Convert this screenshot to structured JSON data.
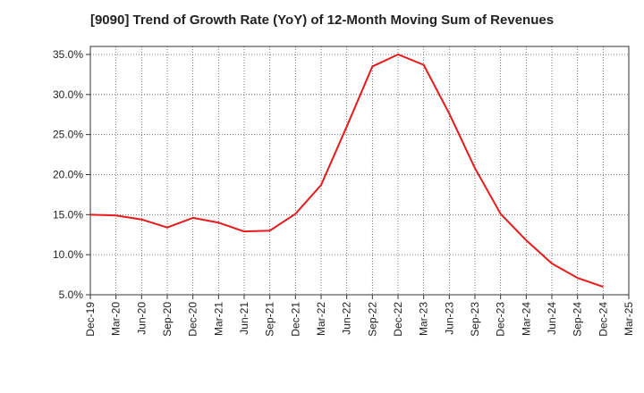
{
  "chart_data": {
    "type": "line",
    "title": "[9090]  Trend of Growth Rate (YoY) of 12-Month Moving Sum of Revenues",
    "xlabel": "",
    "ylabel": "",
    "ylim": [
      5.0,
      36.0
    ],
    "yticks": [
      5.0,
      10.0,
      15.0,
      20.0,
      25.0,
      30.0,
      35.0
    ],
    "ytick_labels": [
      "5.0%",
      "10.0%",
      "15.0%",
      "20.0%",
      "25.0%",
      "30.0%",
      "35.0%"
    ],
    "xticks": [
      "Dec-19",
      "Mar-20",
      "Jun-20",
      "Sep-20",
      "Dec-20",
      "Mar-21",
      "Jun-21",
      "Sep-21",
      "Dec-21",
      "Mar-22",
      "Jun-22",
      "Sep-22",
      "Dec-22",
      "Mar-23",
      "Jun-23",
      "Sep-23",
      "Dec-23",
      "Mar-24",
      "Jun-24",
      "Sep-24",
      "Dec-24",
      "Mar-25"
    ],
    "x": [
      "Dec-19",
      "Mar-20",
      "Jun-20",
      "Sep-20",
      "Dec-20",
      "Mar-21",
      "Jun-21",
      "Sep-21",
      "Dec-21",
      "Mar-22",
      "Jun-22",
      "Sep-22",
      "Dec-22",
      "Mar-23",
      "Jun-23",
      "Sep-23",
      "Dec-23",
      "Mar-24",
      "Jun-24",
      "Sep-24",
      "Dec-24"
    ],
    "series": [
      {
        "color": "#e8191a",
        "values": [
          15.0,
          14.9,
          14.4,
          13.4,
          14.6,
          14.0,
          12.9,
          13.0,
          15.1,
          18.7,
          26.0,
          33.5,
          35.0,
          33.7,
          27.6,
          20.8,
          15.1,
          11.8,
          8.9,
          7.1,
          6.0
        ]
      }
    ],
    "grid": true,
    "grid_style": "dotted",
    "legend": "none"
  }
}
